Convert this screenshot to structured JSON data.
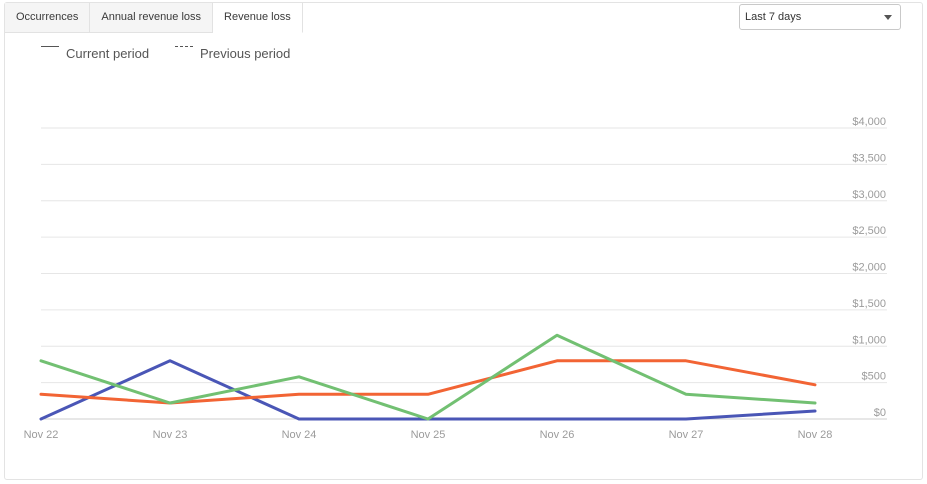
{
  "tabs": [
    {
      "label": "Occurrences"
    },
    {
      "label": "Annual revenue loss"
    },
    {
      "label": "Revenue loss"
    }
  ],
  "active_tab": 2,
  "period_select": {
    "value": "Last 7 days"
  },
  "legend": {
    "current": "Current period",
    "previous": "Previous period"
  },
  "colors": {
    "blue": "#4a56b6",
    "orange": "#f26434",
    "green": "#72c072",
    "grid": "#e6e6e6",
    "tick": "#9b9b9b"
  },
  "chart_data": {
    "type": "line",
    "categories": [
      "Nov 22",
      "Nov 23",
      "Nov 24",
      "Nov 25",
      "Nov 26",
      "Nov 27",
      "Nov 28"
    ],
    "y_ticks": [
      "$0",
      "$500",
      "$1,000",
      "$1,500",
      "$2,000",
      "$2,500",
      "$3,000",
      "$3,500",
      "$4,000"
    ],
    "ylim": [
      0,
      4000
    ],
    "grid": true,
    "y_axis_position": "right",
    "legend_position": "top-left",
    "series": [
      {
        "color": "#4a56b6",
        "values": [
          0,
          800,
          0,
          0,
          0,
          0,
          110
        ]
      },
      {
        "color": "#f26434",
        "values": [
          340,
          220,
          340,
          340,
          800,
          800,
          470
        ]
      },
      {
        "color": "#72c072",
        "values": [
          800,
          220,
          580,
          0,
          1150,
          340,
          220
        ]
      }
    ]
  }
}
